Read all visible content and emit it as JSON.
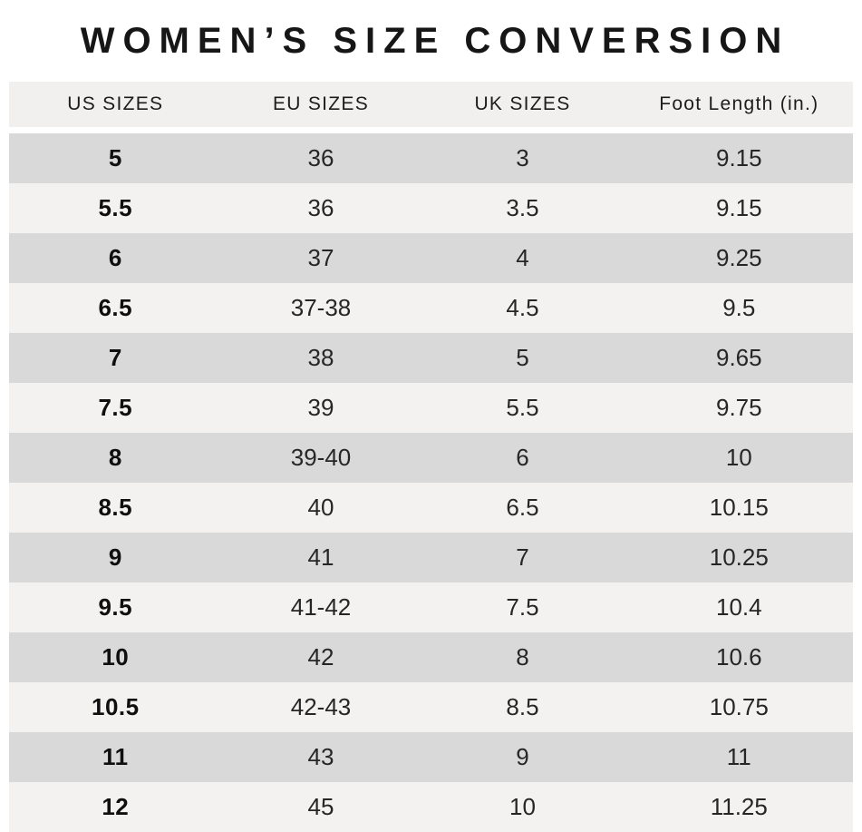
{
  "title": "WOMEN’S SIZE CONVERSION",
  "chart_data": {
    "type": "table",
    "title": "WOMEN’S SIZE CONVERSION",
    "columns": [
      "US SIZES",
      "EU SIZES",
      "UK SIZES",
      "Foot Length (in.)"
    ],
    "rows": [
      [
        "5",
        "36",
        "3",
        "9.15"
      ],
      [
        "5.5",
        "36",
        "3.5",
        "9.15"
      ],
      [
        "6",
        "37",
        "4",
        "9.25"
      ],
      [
        "6.5",
        "37-38",
        "4.5",
        "9.5"
      ],
      [
        "7",
        "38",
        "5",
        "9.65"
      ],
      [
        "7.5",
        "39",
        "5.5",
        "9.75"
      ],
      [
        "8",
        "39-40",
        "6",
        "10"
      ],
      [
        "8.5",
        "40",
        "6.5",
        "10.15"
      ],
      [
        "9",
        "41",
        "7",
        "10.25"
      ],
      [
        "9.5",
        "41-42",
        "7.5",
        "10.4"
      ],
      [
        "10",
        "42",
        "8",
        "10.6"
      ],
      [
        "10.5",
        "42-43",
        "8.5",
        "10.75"
      ],
      [
        "11",
        "43",
        "9",
        "11"
      ],
      [
        "12",
        "45",
        "10",
        "11.25"
      ]
    ]
  },
  "colors": {
    "header_bg": "#f1f0ee",
    "row_dark": "#d9d9d9",
    "row_light": "#f3f2f1",
    "title_text": "#161616",
    "body_text": "#262626"
  }
}
